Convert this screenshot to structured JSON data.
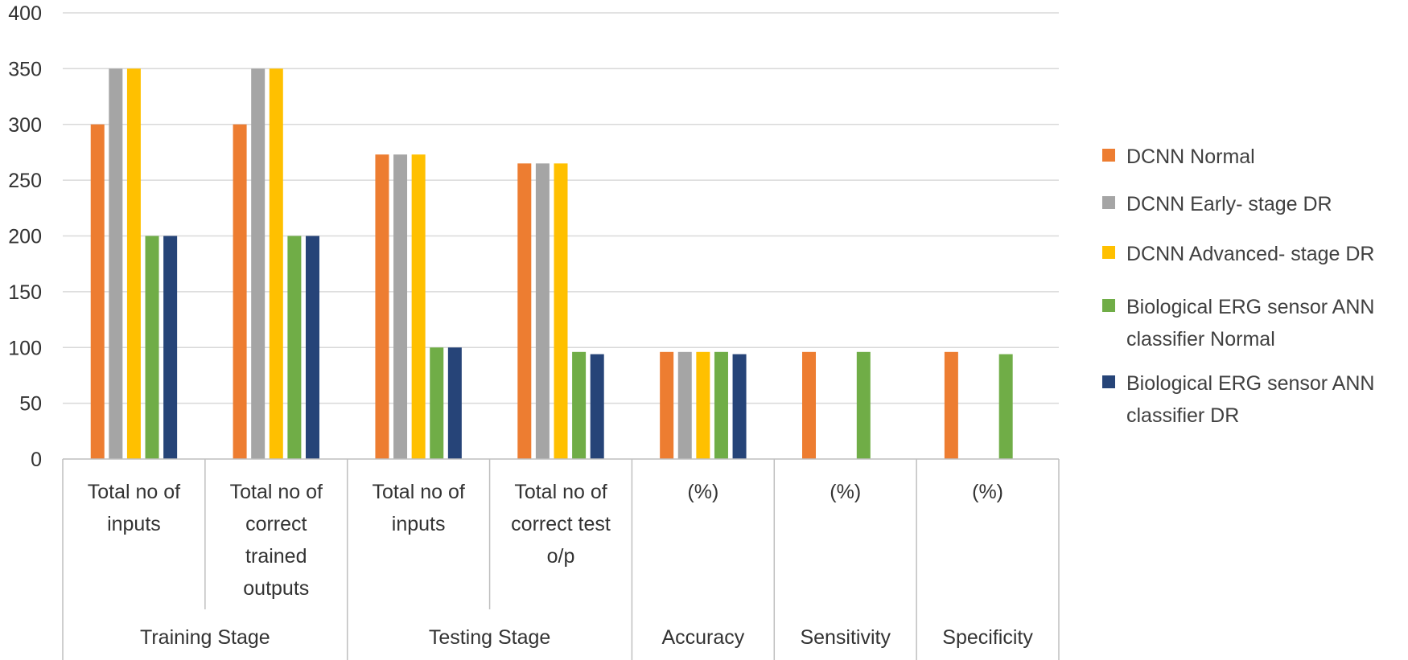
{
  "chart_data": {
    "type": "bar",
    "title": "",
    "xlabel": "",
    "ylabel": "",
    "ylim": [
      0,
      400
    ],
    "yticks": [
      0,
      50,
      100,
      150,
      200,
      250,
      300,
      350,
      400
    ],
    "grid": true,
    "legend_position": "right",
    "categories": [
      {
        "lines": [
          "Total no of",
          "inputs"
        ]
      },
      {
        "lines": [
          "Total no of",
          "correct",
          "trained",
          "outputs"
        ]
      },
      {
        "lines": [
          "Total no of",
          "inputs"
        ]
      },
      {
        "lines": [
          "Total no of",
          "correct test",
          "o/p"
        ]
      },
      {
        "lines": [
          "(%)"
        ]
      },
      {
        "lines": [
          "(%)"
        ]
      },
      {
        "lines": [
          "(%)"
        ]
      }
    ],
    "groups": [
      {
        "label": "Training Stage",
        "categories": [
          0,
          1
        ]
      },
      {
        "label": "Testing Stage",
        "categories": [
          2,
          3
        ]
      },
      {
        "label": "Accuracy",
        "categories": [
          4
        ]
      },
      {
        "label": "Sensitivity",
        "categories": [
          5
        ]
      },
      {
        "label": "Specificity",
        "categories": [
          6
        ]
      }
    ],
    "series": [
      {
        "name": "DCNN Normal",
        "color": "#ED7D31",
        "values": [
          300,
          300,
          273,
          265,
          96,
          96,
          96
        ]
      },
      {
        "name": "DCNN Early- stage DR",
        "color": "#A5A5A5",
        "values": [
          350,
          350,
          273,
          265,
          96,
          null,
          null
        ]
      },
      {
        "name": "DCNN Advanced- stage DR",
        "color": "#FFC000",
        "values": [
          350,
          350,
          273,
          265,
          96,
          null,
          null
        ]
      },
      {
        "name": "Biological ERG sensor ANN classifier Normal",
        "legend_lines": [
          "Biological ERG sensor ANN",
          "classifier Normal"
        ],
        "color": "#70AD47",
        "values": [
          200,
          200,
          100,
          96,
          96,
          96,
          94
        ]
      },
      {
        "name": "Biological ERG sensor ANN classifier DR",
        "legend_lines": [
          "Biological ERG sensor ANN",
          "classifier DR"
        ],
        "color": "#264478",
        "values": [
          200,
          200,
          100,
          94,
          94,
          null,
          null
        ]
      }
    ]
  }
}
